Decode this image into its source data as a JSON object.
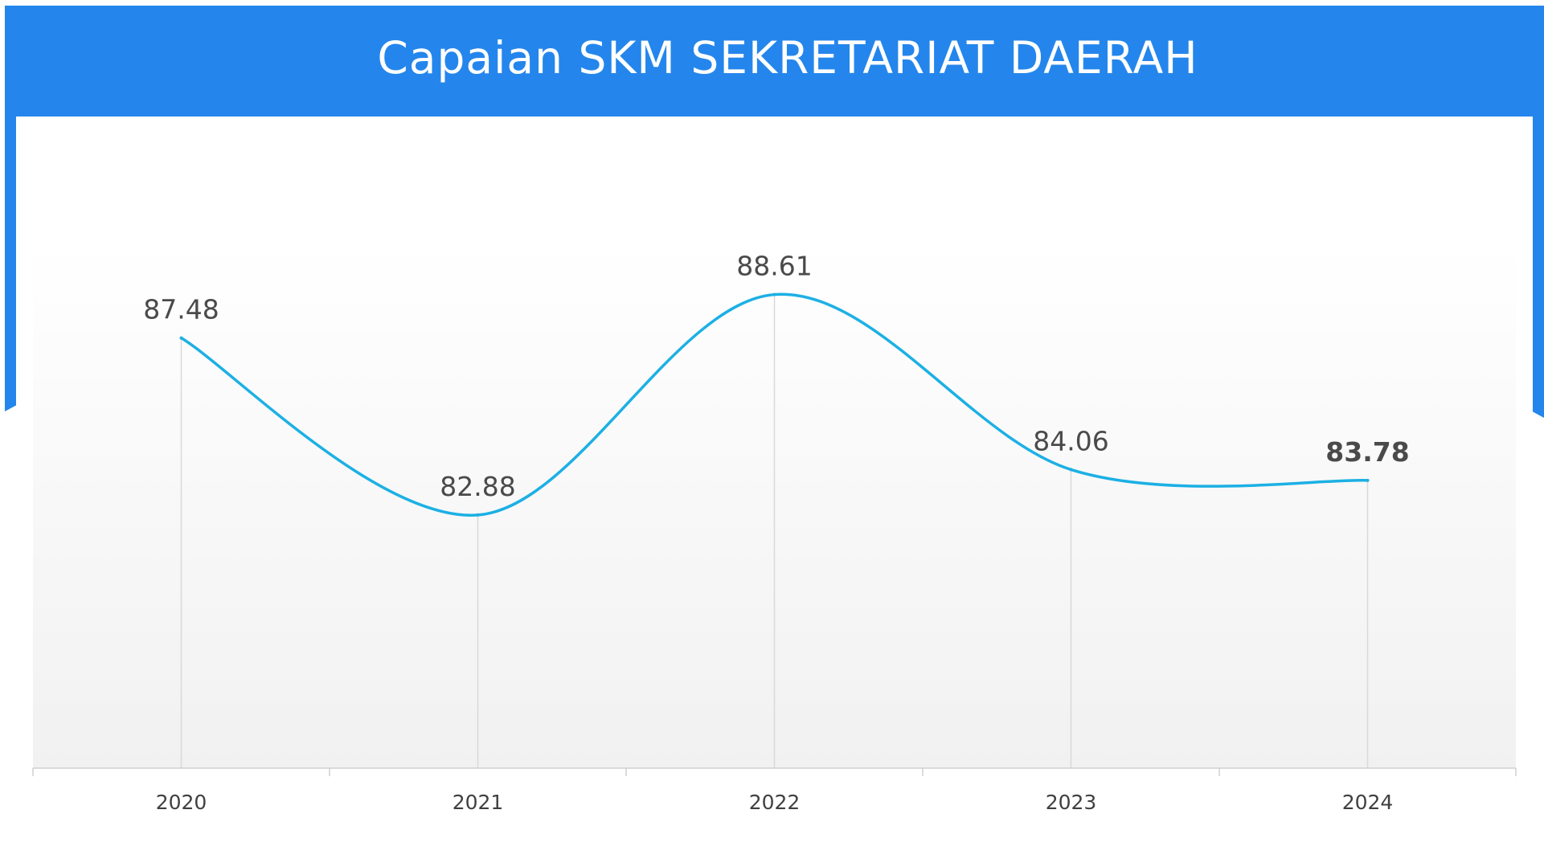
{
  "colors": {
    "header": "#2486ec",
    "line": "#1cb0e4",
    "label": "#4a4a4a"
  },
  "chart_data": {
    "type": "line",
    "title": "Capaian SKM SEKRETARIAT DAERAH",
    "categories": [
      "2020",
      "2021",
      "2022",
      "2023",
      "2024"
    ],
    "series": [
      {
        "values": [
          87.48,
          82.88,
          88.61,
          84.06,
          83.78
        ]
      }
    ],
    "data_labels": [
      "87.48",
      "82.88",
      "88.61",
      "84.06",
      "83.78"
    ],
    "smooth": true,
    "grid": "vertical drop lines",
    "legend": "none",
    "ylim": [
      76.3,
      90.0
    ]
  }
}
